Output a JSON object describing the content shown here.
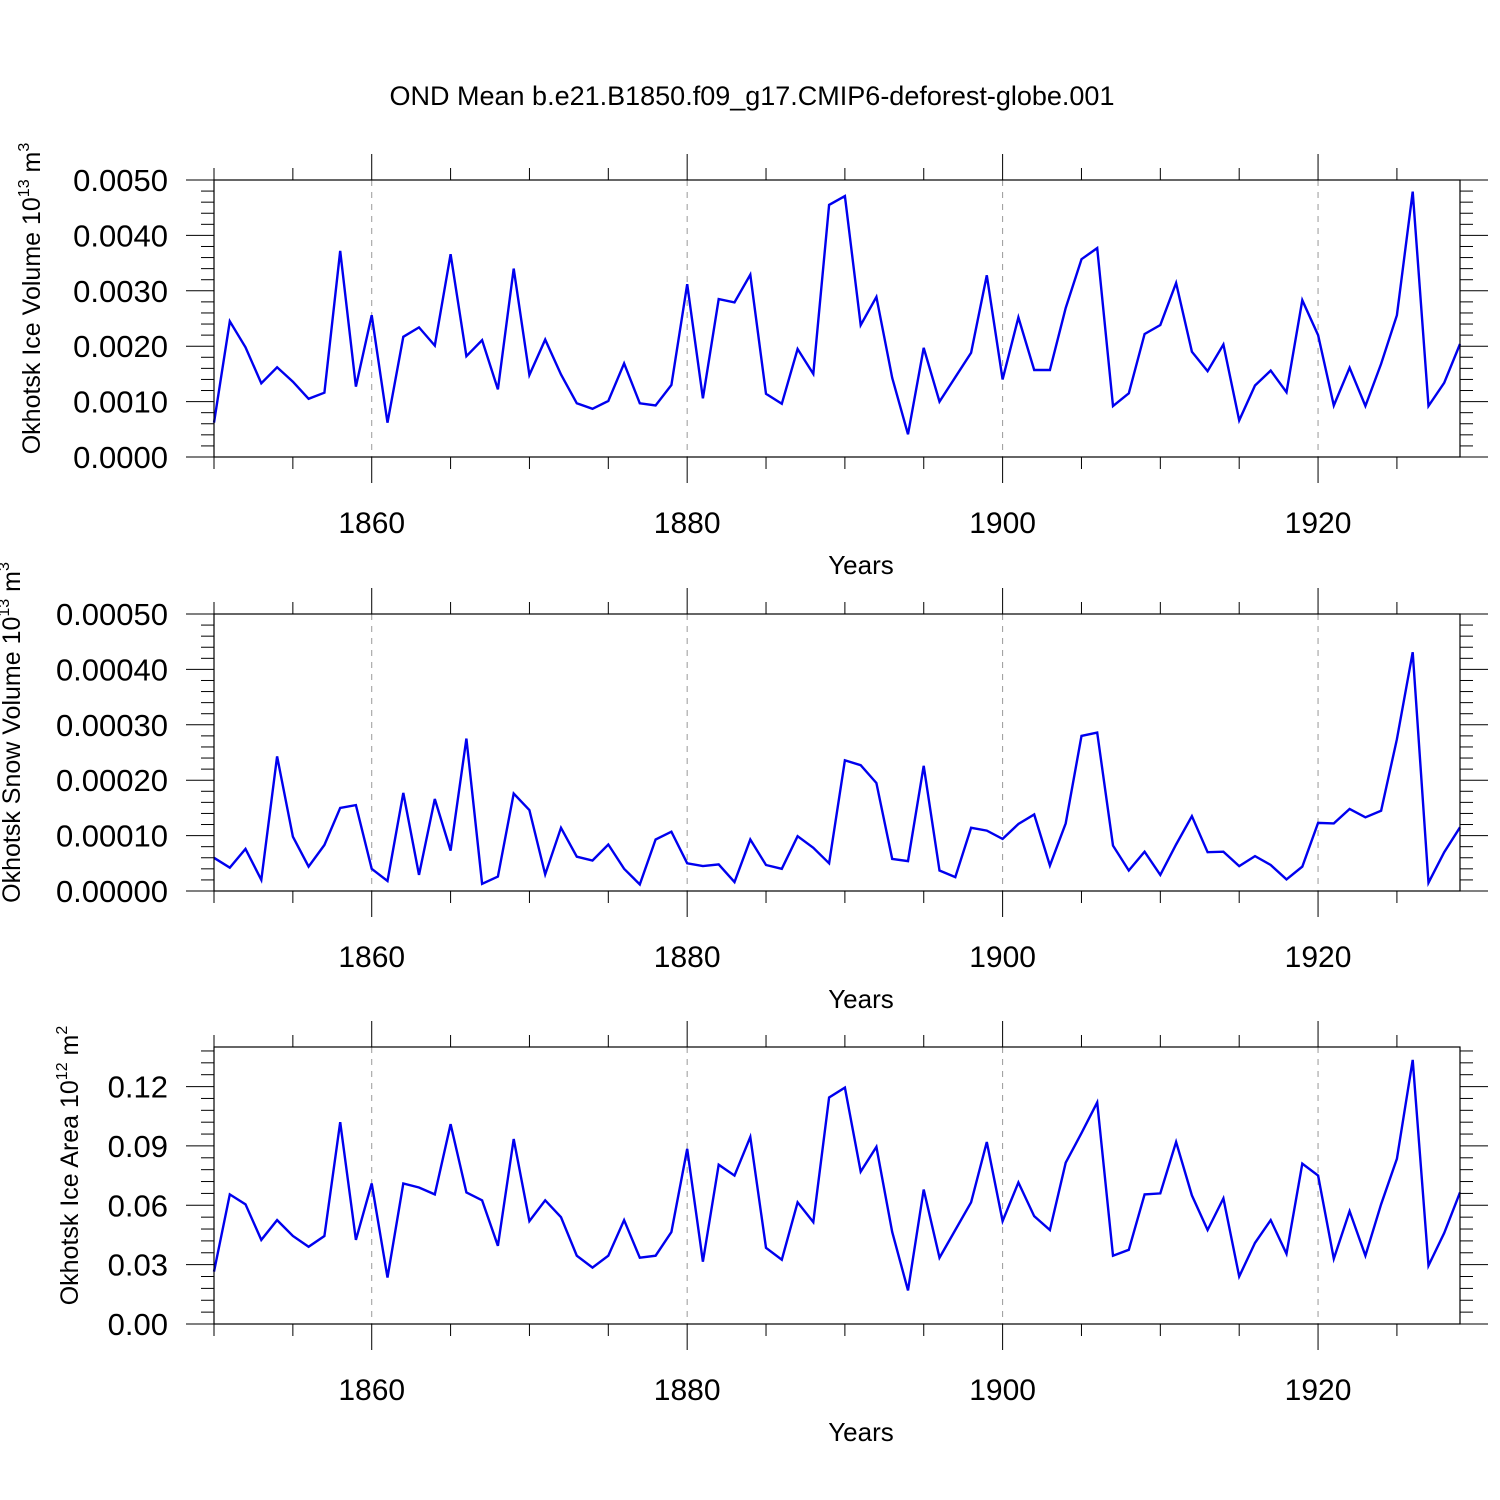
{
  "title": "OND Mean b.e21.B1850.f09_g17.CMIP6-deforest-globe.001",
  "colors": {
    "line": "#0000ee",
    "axis": "#000000",
    "grid": "#999999",
    "background": "#ffffff"
  },
  "chart_data": [
    {
      "type": "line",
      "ylabel_main": "Okhotsk Ice Volume 10",
      "ylabel_exp": "13",
      "ylabel_unit": " m",
      "ylabel_unit_exp": "3",
      "xlabel": "Years",
      "xlim": [
        1850,
        1929
      ],
      "ylim": [
        0,
        0.005
      ],
      "xticks": [
        1860,
        1880,
        1900,
        1920
      ],
      "xtick_labels": [
        "1860",
        "1880",
        "1900",
        "1920"
      ],
      "yticks": [
        0,
        0.001,
        0.002,
        0.003,
        0.004,
        0.005
      ],
      "ytick_labels": [
        "0.0000",
        "0.0010",
        "0.0020",
        "0.0030",
        "0.0040",
        "0.0050"
      ],
      "x_start": 1850,
      "series": [
        {
          "name": "Okhotsk Ice Volume",
          "values": [
            0.00062,
            0.00245,
            0.00198,
            0.00133,
            0.00162,
            0.00136,
            0.00105,
            0.00116,
            0.00372,
            0.00127,
            0.00256,
            0.00062,
            0.00217,
            0.00234,
            0.00201,
            0.00366,
            0.00182,
            0.00211,
            0.00122,
            0.0034,
            0.00148,
            0.00212,
            0.00149,
            0.00097,
            0.00087,
            0.00101,
            0.00169,
            0.00097,
            0.00093,
            0.0013,
            0.00312,
            0.00106,
            0.00285,
            0.00279,
            0.00329,
            0.00114,
            0.00096,
            0.00195,
            0.0015,
            0.00455,
            0.00471,
            0.00238,
            0.00289,
            0.00143,
            0.00041,
            0.00197,
            0.001,
            0.00144,
            0.00188,
            0.00328,
            0.0014,
            0.00252,
            0.00157,
            0.00157,
            0.00269,
            0.00357,
            0.00377,
            0.00092,
            0.00115,
            0.00222,
            0.00238,
            0.00314,
            0.0019,
            0.00155,
            0.00203,
            0.00066,
            0.00129,
            0.00156,
            0.00117,
            0.00283,
            0.0022,
            0.00093,
            0.00161,
            0.00092,
            0.00168,
            0.00256,
            0.00479,
            0.00092,
            0.00134,
            0.00204
          ]
        }
      ]
    },
    {
      "type": "line",
      "ylabel_main": "Okhotsk Snow Volume 10",
      "ylabel_exp": "13",
      "ylabel_unit": " m",
      "ylabel_unit_exp": "3",
      "xlabel": "Years",
      "xlim": [
        1850,
        1929
      ],
      "ylim": [
        0,
        0.0005
      ],
      "xticks": [
        1860,
        1880,
        1900,
        1920
      ],
      "xtick_labels": [
        "1860",
        "1880",
        "1900",
        "1920"
      ],
      "yticks": [
        0,
        0.0001,
        0.0002,
        0.0003,
        0.0004,
        0.0005
      ],
      "ytick_labels": [
        "0.00000",
        "0.00010",
        "0.00020",
        "0.00030",
        "0.00040",
        "0.00050"
      ],
      "x_start": 1850,
      "series": [
        {
          "name": "Okhotsk Snow Volume",
          "values": [
            6e-05,
            4.2e-05,
            7.6e-05,
            2e-05,
            0.000243,
            9.8e-05,
            4.4e-05,
            8.3e-05,
            0.00015,
            0.000155,
            4e-05,
            1.8e-05,
            0.000177,
            2.9e-05,
            0.000166,
            7.3e-05,
            0.000275,
            1.3e-05,
            2.6e-05,
            0.000176,
            0.000146,
            3e-05,
            0.000114,
            6.2e-05,
            5.5e-05,
            8.4e-05,
            4e-05,
            1.2e-05,
            9.3e-05,
            0.000107,
            5e-05,
            4.5e-05,
            4.8e-05,
            1.6e-05,
            9.3e-05,
            4.7e-05,
            4e-05,
            9.9e-05,
            7.8e-05,
            5e-05,
            0.000236,
            0.000227,
            0.000195,
            5.8e-05,
            5.4e-05,
            0.000226,
            3.7e-05,
            2.5e-05,
            0.000114,
            0.000109,
            9.4e-05,
            0.000121,
            0.000138,
            4.6e-05,
            0.000122,
            0.00028,
            0.000286,
            8.2e-05,
            3.7e-05,
            7.1e-05,
            2.9e-05,
            8.4e-05,
            0.000135,
            7e-05,
            7.1e-05,
            4.5e-05,
            6.3e-05,
            4.7e-05,
            2.1e-05,
            4.4e-05,
            0.000123,
            0.000122,
            0.000148,
            0.000133,
            0.000145,
            0.000274,
            0.000431,
            1.5e-05,
            7e-05,
            0.000115
          ]
        }
      ]
    },
    {
      "type": "line",
      "ylabel_main": "Okhotsk Ice Area 10",
      "ylabel_exp": "12",
      "ylabel_unit": " m",
      "ylabel_unit_exp": "2",
      "xlabel": "Years",
      "xlim": [
        1850,
        1929
      ],
      "ylim": [
        0,
        0.14
      ],
      "xticks": [
        1860,
        1880,
        1900,
        1920
      ],
      "xtick_labels": [
        "1860",
        "1880",
        "1900",
        "1920"
      ],
      "yticks": [
        0,
        0.03,
        0.06,
        0.09,
        0.12
      ],
      "ytick_labels": [
        "0.00",
        "0.03",
        "0.06",
        "0.09",
        "0.12"
      ],
      "x_start": 1850,
      "series": [
        {
          "name": "Okhotsk Ice Area",
          "values": [
            0.0265,
            0.0655,
            0.0605,
            0.0425,
            0.0525,
            0.0445,
            0.039,
            0.0445,
            0.102,
            0.0425,
            0.071,
            0.0235,
            0.071,
            0.069,
            0.0655,
            0.101,
            0.0665,
            0.0625,
            0.0395,
            0.0935,
            0.052,
            0.0625,
            0.054,
            0.0345,
            0.0285,
            0.0345,
            0.0525,
            0.0335,
            0.0345,
            0.0465,
            0.0885,
            0.0315,
            0.0805,
            0.075,
            0.0945,
            0.0385,
            0.0325,
            0.0615,
            0.0515,
            0.1145,
            0.1195,
            0.077,
            0.0895,
            0.0465,
            0.017,
            0.068,
            0.0335,
            0.0475,
            0.0615,
            0.092,
            0.052,
            0.0715,
            0.0545,
            0.0475,
            0.0815,
            0.0965,
            0.112,
            0.0345,
            0.0375,
            0.0655,
            0.066,
            0.092,
            0.065,
            0.0475,
            0.0635,
            0.024,
            0.041,
            0.0525,
            0.0355,
            0.081,
            0.075,
            0.033,
            0.057,
            0.0345,
            0.0605,
            0.0835,
            0.1335,
            0.0295,
            0.046,
            0.0665
          ]
        }
      ]
    }
  ]
}
